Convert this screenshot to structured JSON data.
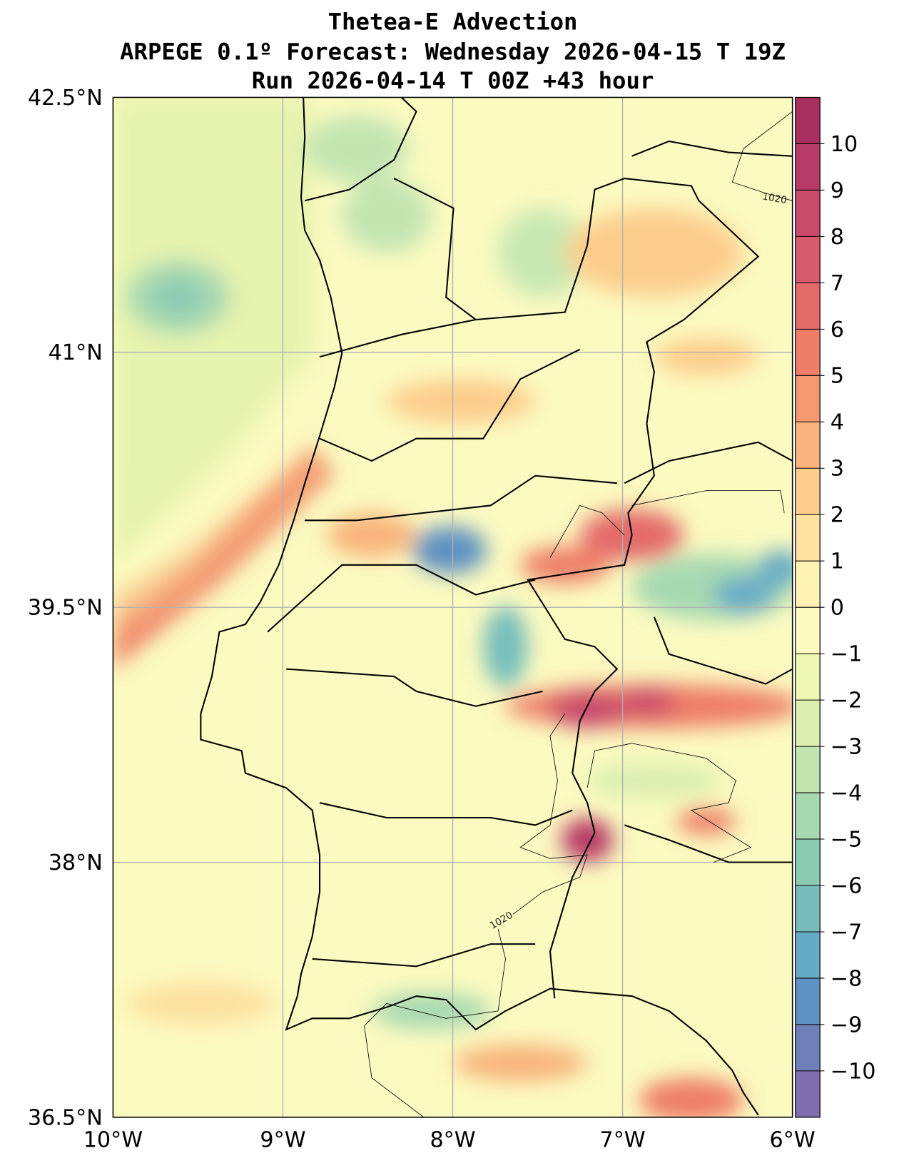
{
  "chart_data": {
    "type": "heatmap",
    "title": "Thetea-E Advection",
    "subtitle_1": "ARPEGE 0.1º Forecast: Wednesday 2026-04-15 T 19Z",
    "subtitle_2": "Run 2026-04-14 T 00Z +43 hour",
    "x_ticks": [
      "10°W",
      "9°W",
      "8°W",
      "7°W",
      "6°W"
    ],
    "y_ticks": [
      "42.5°N",
      "41°N",
      "39.5°N",
      "38°N",
      "36.5°N"
    ],
    "lon_range": [
      -10,
      -6
    ],
    "lat_range": [
      36.5,
      42.5
    ],
    "grid": true,
    "colorbar": {
      "range": [
        -11,
        11
      ],
      "ticks": [
        "10",
        "9",
        "8",
        "7",
        "6",
        "5",
        "4",
        "3",
        "2",
        "1",
        "0",
        "−1",
        "−2",
        "−3",
        "−4",
        "−5",
        "−6",
        "−7",
        "−8",
        "−9",
        "−10"
      ],
      "colormap": "Spectral_r",
      "colors": [
        "#7f6db0",
        "#6f7fb8",
        "#5f92c2",
        "#66abc6",
        "#76bdbb",
        "#8ccbb3",
        "#a7d9b1",
        "#c2e5b2",
        "#dcefb0",
        "#eef6b4",
        "#fbfac0",
        "#fef3b4",
        "#fde2a1",
        "#fccd8d",
        "#f8b47c",
        "#f4996f",
        "#ee7e68",
        "#e46a6b",
        "#d75a6b",
        "#c94a6a",
        "#b83a66",
        "#a82f5f"
      ]
    },
    "contour_labels": [
      "1020",
      "1020"
    ]
  }
}
